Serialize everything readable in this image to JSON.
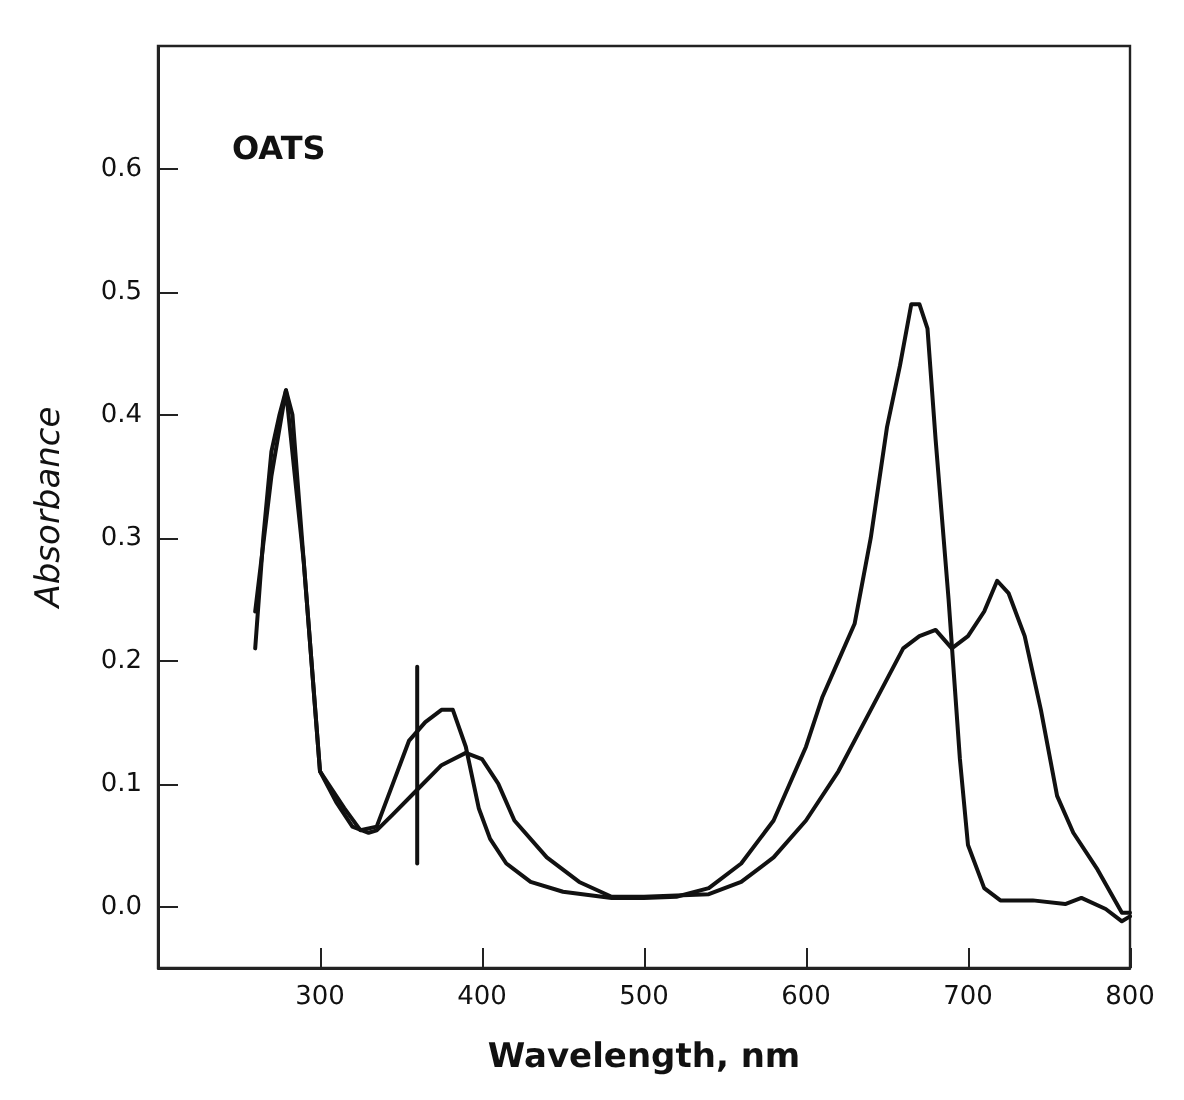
{
  "chart_data": {
    "type": "line",
    "xlabel": "Wavelength, nm",
    "ylabel": "Absorbance",
    "annotations": [
      "OATS"
    ],
    "xlim": [
      200,
      800
    ],
    "xticks": [
      300,
      400,
      500,
      600,
      700,
      800
    ],
    "ylim": [
      -0.05,
      0.7
    ],
    "yticks": [
      {
        "value": 0,
        "label": "0.0"
      },
      0.1,
      0.2,
      0.3,
      0.4,
      0.5,
      0.6
    ],
    "grid": false,
    "marker": "none",
    "line_style": "solid",
    "series": [
      {
        "color": "#111111",
        "x": [
          260,
          265,
          270,
          275,
          279,
          283,
          290,
          300,
          305,
          315,
          325,
          335,
          345,
          355,
          365,
          375,
          382,
          390,
          398,
          405,
          415,
          430,
          450,
          480,
          500,
          520,
          540,
          560,
          580,
          600,
          610,
          620,
          630,
          640,
          650,
          658,
          665,
          670,
          675,
          680,
          688,
          695,
          700,
          710,
          720,
          740,
          760,
          770,
          785,
          795,
          800
        ],
        "values": [
          0.21,
          0.3,
          0.37,
          0.4,
          0.42,
          0.4,
          0.28,
          0.11,
          0.1,
          0.08,
          0.062,
          0.065,
          0.1,
          0.135,
          0.15,
          0.16,
          0.16,
          0.13,
          0.08,
          0.055,
          0.035,
          0.02,
          0.012,
          0.007,
          0.007,
          0.008,
          0.015,
          0.035,
          0.07,
          0.13,
          0.17,
          0.2,
          0.23,
          0.3,
          0.39,
          0.44,
          0.49,
          0.49,
          0.47,
          0.38,
          0.25,
          0.12,
          0.05,
          0.015,
          0.005,
          0.005,
          0.002,
          0.007,
          -0.002,
          -0.012,
          -0.008
        ]
      },
      {
        "color": "#111111",
        "x": [
          260,
          270,
          279,
          290,
          300,
          310,
          320,
          330,
          335,
          345,
          360,
          375,
          390,
          400,
          410,
          420,
          440,
          460,
          480,
          500,
          540,
          560,
          580,
          600,
          620,
          640,
          660,
          670,
          680,
          690,
          700,
          710,
          718,
          725,
          735,
          745,
          755,
          765,
          780,
          795,
          800
        ],
        "values": [
          0.24,
          0.35,
          0.42,
          0.28,
          0.11,
          0.085,
          0.065,
          0.06,
          0.062,
          0.075,
          0.095,
          0.115,
          0.125,
          0.12,
          0.1,
          0.07,
          0.04,
          0.02,
          0.008,
          0.008,
          0.01,
          0.02,
          0.04,
          0.07,
          0.11,
          0.16,
          0.21,
          0.22,
          0.225,
          0.21,
          0.22,
          0.24,
          0.265,
          0.255,
          0.22,
          0.16,
          0.09,
          0.06,
          0.03,
          -0.005,
          -0.005
        ]
      },
      {
        "color": "#111111",
        "x": [
          360,
          360
        ],
        "values": [
          0.035,
          0.195
        ]
      }
    ]
  }
}
